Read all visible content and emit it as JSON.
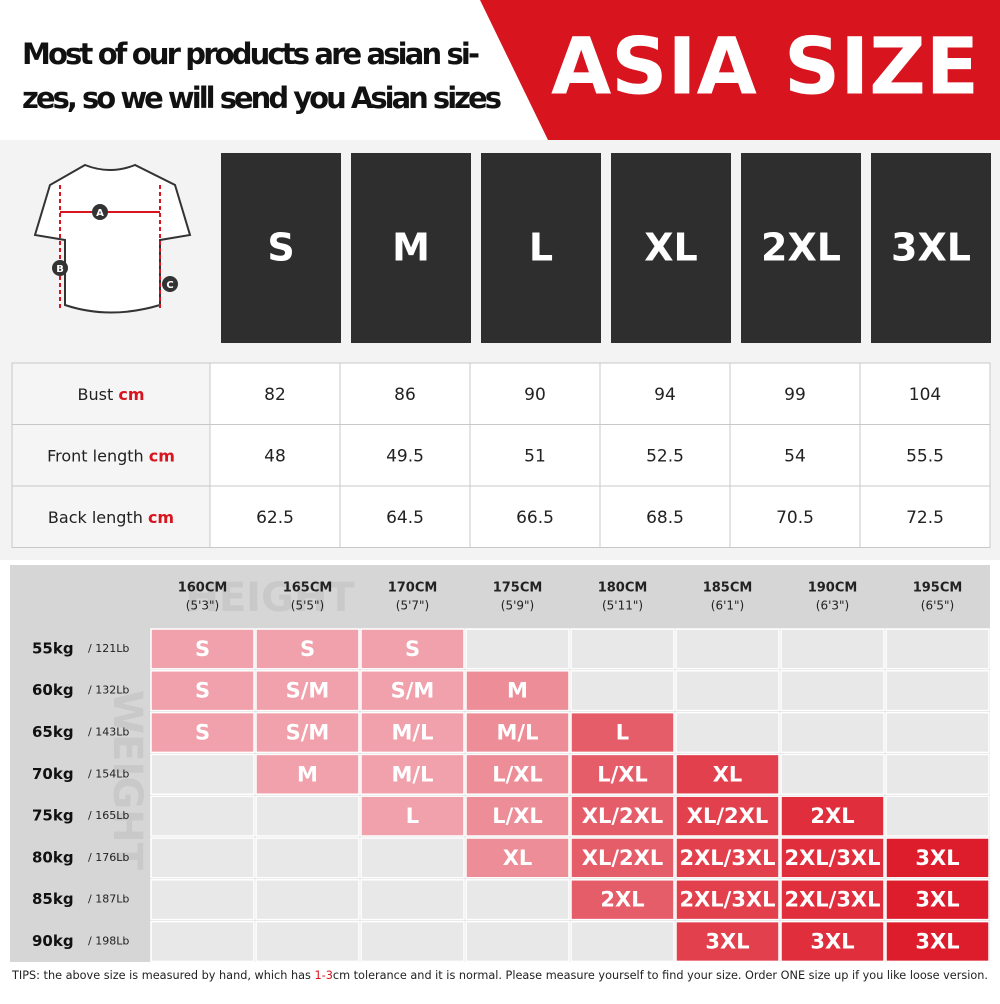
{
  "header": {
    "lines": [
      "Most of our products are asian si-",
      "zes, so we will send you Asian sizes"
    ],
    "badge": "ASIA SIZE"
  },
  "diagram": {
    "labels": [
      "A",
      "B",
      "C"
    ]
  },
  "sizes": [
    "S",
    "M",
    "L",
    "XL",
    "2XL",
    "3XL"
  ],
  "measurements": [
    {
      "label": "Bust",
      "unit": "cm",
      "values": [
        82,
        86,
        90,
        94,
        99,
        104
      ]
    },
    {
      "label": "Front length",
      "unit": "cm",
      "values": [
        48,
        49.5,
        51,
        52.5,
        54,
        55.5
      ]
    },
    {
      "label": "Back length",
      "unit": "cm",
      "values": [
        62.5,
        64.5,
        66.5,
        68.5,
        70.5,
        72.5
      ]
    }
  ],
  "grid": {
    "watermarks": [
      "HEIGHT",
      "WEIGHT"
    ],
    "heights": [
      {
        "cm": "160CM",
        "ft": "(5'3\")"
      },
      {
        "cm": "165CM",
        "ft": "(5'5\")"
      },
      {
        "cm": "170CM",
        "ft": "(5'7\")"
      },
      {
        "cm": "175CM",
        "ft": "(5'9\")"
      },
      {
        "cm": "180CM",
        "ft": "(5'11\")"
      },
      {
        "cm": "185CM",
        "ft": "(6'1\")"
      },
      {
        "cm": "190CM",
        "ft": "(6'3\")"
      },
      {
        "cm": "195CM",
        "ft": "(6'5\")"
      }
    ],
    "weights": [
      {
        "kg": "55kg",
        "lb": "/ 121Lb"
      },
      {
        "kg": "60kg",
        "lb": "/ 132Lb"
      },
      {
        "kg": "65kg",
        "lb": "/ 143Lb"
      },
      {
        "kg": "70kg",
        "lb": "/ 154Lb"
      },
      {
        "kg": "75kg",
        "lb": "/ 165Lb"
      },
      {
        "kg": "80kg",
        "lb": "/ 176Lb"
      },
      {
        "kg": "85kg",
        "lb": "/ 187Lb"
      },
      {
        "kg": "90kg",
        "lb": "/ 198Lb"
      }
    ],
    "rows": [
      [
        "S",
        "S",
        "S",
        null,
        null,
        null,
        null,
        null
      ],
      [
        "S",
        "S/M",
        "S/M",
        "M",
        null,
        null,
        null,
        null
      ],
      [
        "S",
        "S/M",
        "M/L",
        "M/L",
        "L",
        null,
        null,
        null
      ],
      [
        null,
        "M",
        "M/L",
        "L/XL",
        "L/XL",
        "XL",
        null,
        null
      ],
      [
        null,
        null,
        "L",
        "L/XL",
        "XL/2XL",
        "XL/2XL",
        "2XL",
        null
      ],
      [
        null,
        null,
        null,
        "XL",
        "XL/2XL",
        "2XL/3XL",
        "2XL/3XL",
        "3XL"
      ],
      [
        null,
        null,
        null,
        null,
        "2XL",
        "2XL/3XL",
        "2XL/3XL",
        "3XL"
      ],
      [
        null,
        null,
        null,
        null,
        null,
        "3XL",
        "3XL",
        "3XL"
      ]
    ]
  },
  "tips": {
    "before": "TIPS:  the above size is measured by hand, which has ",
    "highlight": "1-3",
    "after": "cm tolerance and it is normal. Please measure yourself to find your size. Order ONE size up if you like loose version."
  }
}
